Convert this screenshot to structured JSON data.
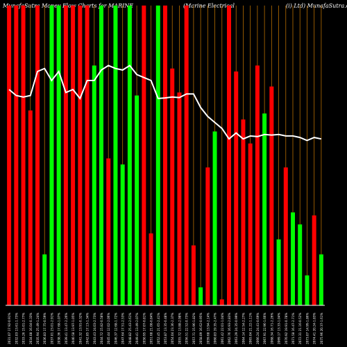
{
  "header": {
    "left": "MunafaSutra  Money Flow  Charts for MARINE",
    "middle": "(Marine    Electrical",
    "right": "(i) Ltd) MunafaSutra.com"
  },
  "colors": {
    "background": "#000000",
    "up": "#00ff00",
    "down": "#ff0000",
    "line": "#ffffff",
    "grid": "#b86e00",
    "axis": "#ffffff"
  },
  "chart_data": {
    "type": "bar",
    "title": "MunafaSutra  Money Flow  Charts for MARINE",
    "ylim": [
      0,
      100
    ],
    "grid": true,
    "series": [
      {
        "name": "",
        "kind": "bar",
        "values": [
          100,
          100,
          100,
          65,
          100,
          17,
          100,
          100,
          100,
          100,
          100,
          100,
          80,
          100,
          49,
          100,
          47,
          100,
          70,
          100,
          24,
          100,
          100,
          79,
          71,
          100,
          20,
          6,
          46,
          58,
          2,
          100,
          78,
          62,
          54,
          80,
          64,
          73,
          22,
          46,
          31,
          27,
          10,
          30,
          17
        ],
        "colors": [
          "red",
          "red",
          "red",
          "red",
          "red",
          "green",
          "green",
          "green",
          "red",
          "red",
          "red",
          "red",
          "green",
          "green",
          "red",
          "green",
          "green",
          "green",
          "green",
          "red",
          "red",
          "green",
          "red",
          "red",
          "red",
          "red",
          "red",
          "green",
          "red",
          "green",
          "red",
          "red",
          "red",
          "red",
          "red",
          "red",
          "green",
          "red",
          "green",
          "red",
          "green",
          "green",
          "green",
          "red",
          "green"
        ]
      },
      {
        "name": "",
        "kind": "line",
        "values": [
          72,
          70,
          69.5,
          70,
          78,
          79,
          75,
          78,
          71,
          72,
          69,
          75,
          75,
          78.5,
          80,
          79,
          78.5,
          80,
          77,
          76,
          75,
          69,
          69.2,
          69.5,
          69.3,
          70.5,
          70.5,
          66,
          63,
          61,
          59,
          55.5,
          57.5,
          55.5,
          56.5,
          56.3,
          57,
          56.8,
          57,
          56.5,
          56.5,
          56,
          55,
          56,
          55.5
        ]
      }
    ],
    "x_tick_labels": [
      "2031.07 17.92-0.91%",
      "2032.03 13.61-1.73%",
      "2033.26 15.01-2.77%",
      "2034.08 16.04-0.33%",
      "2035.94 25.49-1.24%",
      "2036.83 17.75-0.59%",
      "2037.01 23.01-2.91%",
      "2038.36 17.68-1.07%",
      "2039.41 13.47-2.26%",
      "2040.58 13.97-1.05%",
      "2041.32 13.91-0.32%",
      "2042.85 17.13-1.34%",
      "2043.43 24.03-2.73%",
      "2044.72 15.82-0.58%",
      "2045.44 12.02-2.06%",
      "2046.37 12.68-1.72%",
      "2047.64 17.51-2.53%",
      "2048.82 25.43-2.61%",
      "2049.41 13.49-2.07%",
      "2050.95 17.07-0.81%",
      "2051.68 21.08-0.84%",
      "2052.45 21.65-2.41%",
      "2053.87 13.35-0.48%",
      "2054.04 23.36-2.37%",
      "2055.72 13.88-2.98%",
      "2056.51 22.52-0.73%",
      "2057.71 15.96-1.82%",
      "2058.09 16.62-0.95%",
      "2059.68 13.94-2.14%",
      "2060.83 19.35-2.47%",
      "2061.42 22.01-1.04%",
      "2062.76 16.93-2.83%",
      "2063.29 24.35-0.99%",
      "2064.14 12.54-2.27%",
      "2065.04 21.22-1.11%",
      "2066.24 24.41-0.69%",
      "2067.91 22.96-1.66%",
      "2068.34 16.71-2.26%",
      "2069.17 13.33-1.04%",
      "2070.92 19.91-0.78%",
      "2071.58 16.47-2.71%",
      "2072.31 21.16-0.52%",
      "2073.07 14.99-1.86%",
      "2074.41 20.24-1.83%",
      "2075.96 20.37-1.61%"
    ]
  }
}
